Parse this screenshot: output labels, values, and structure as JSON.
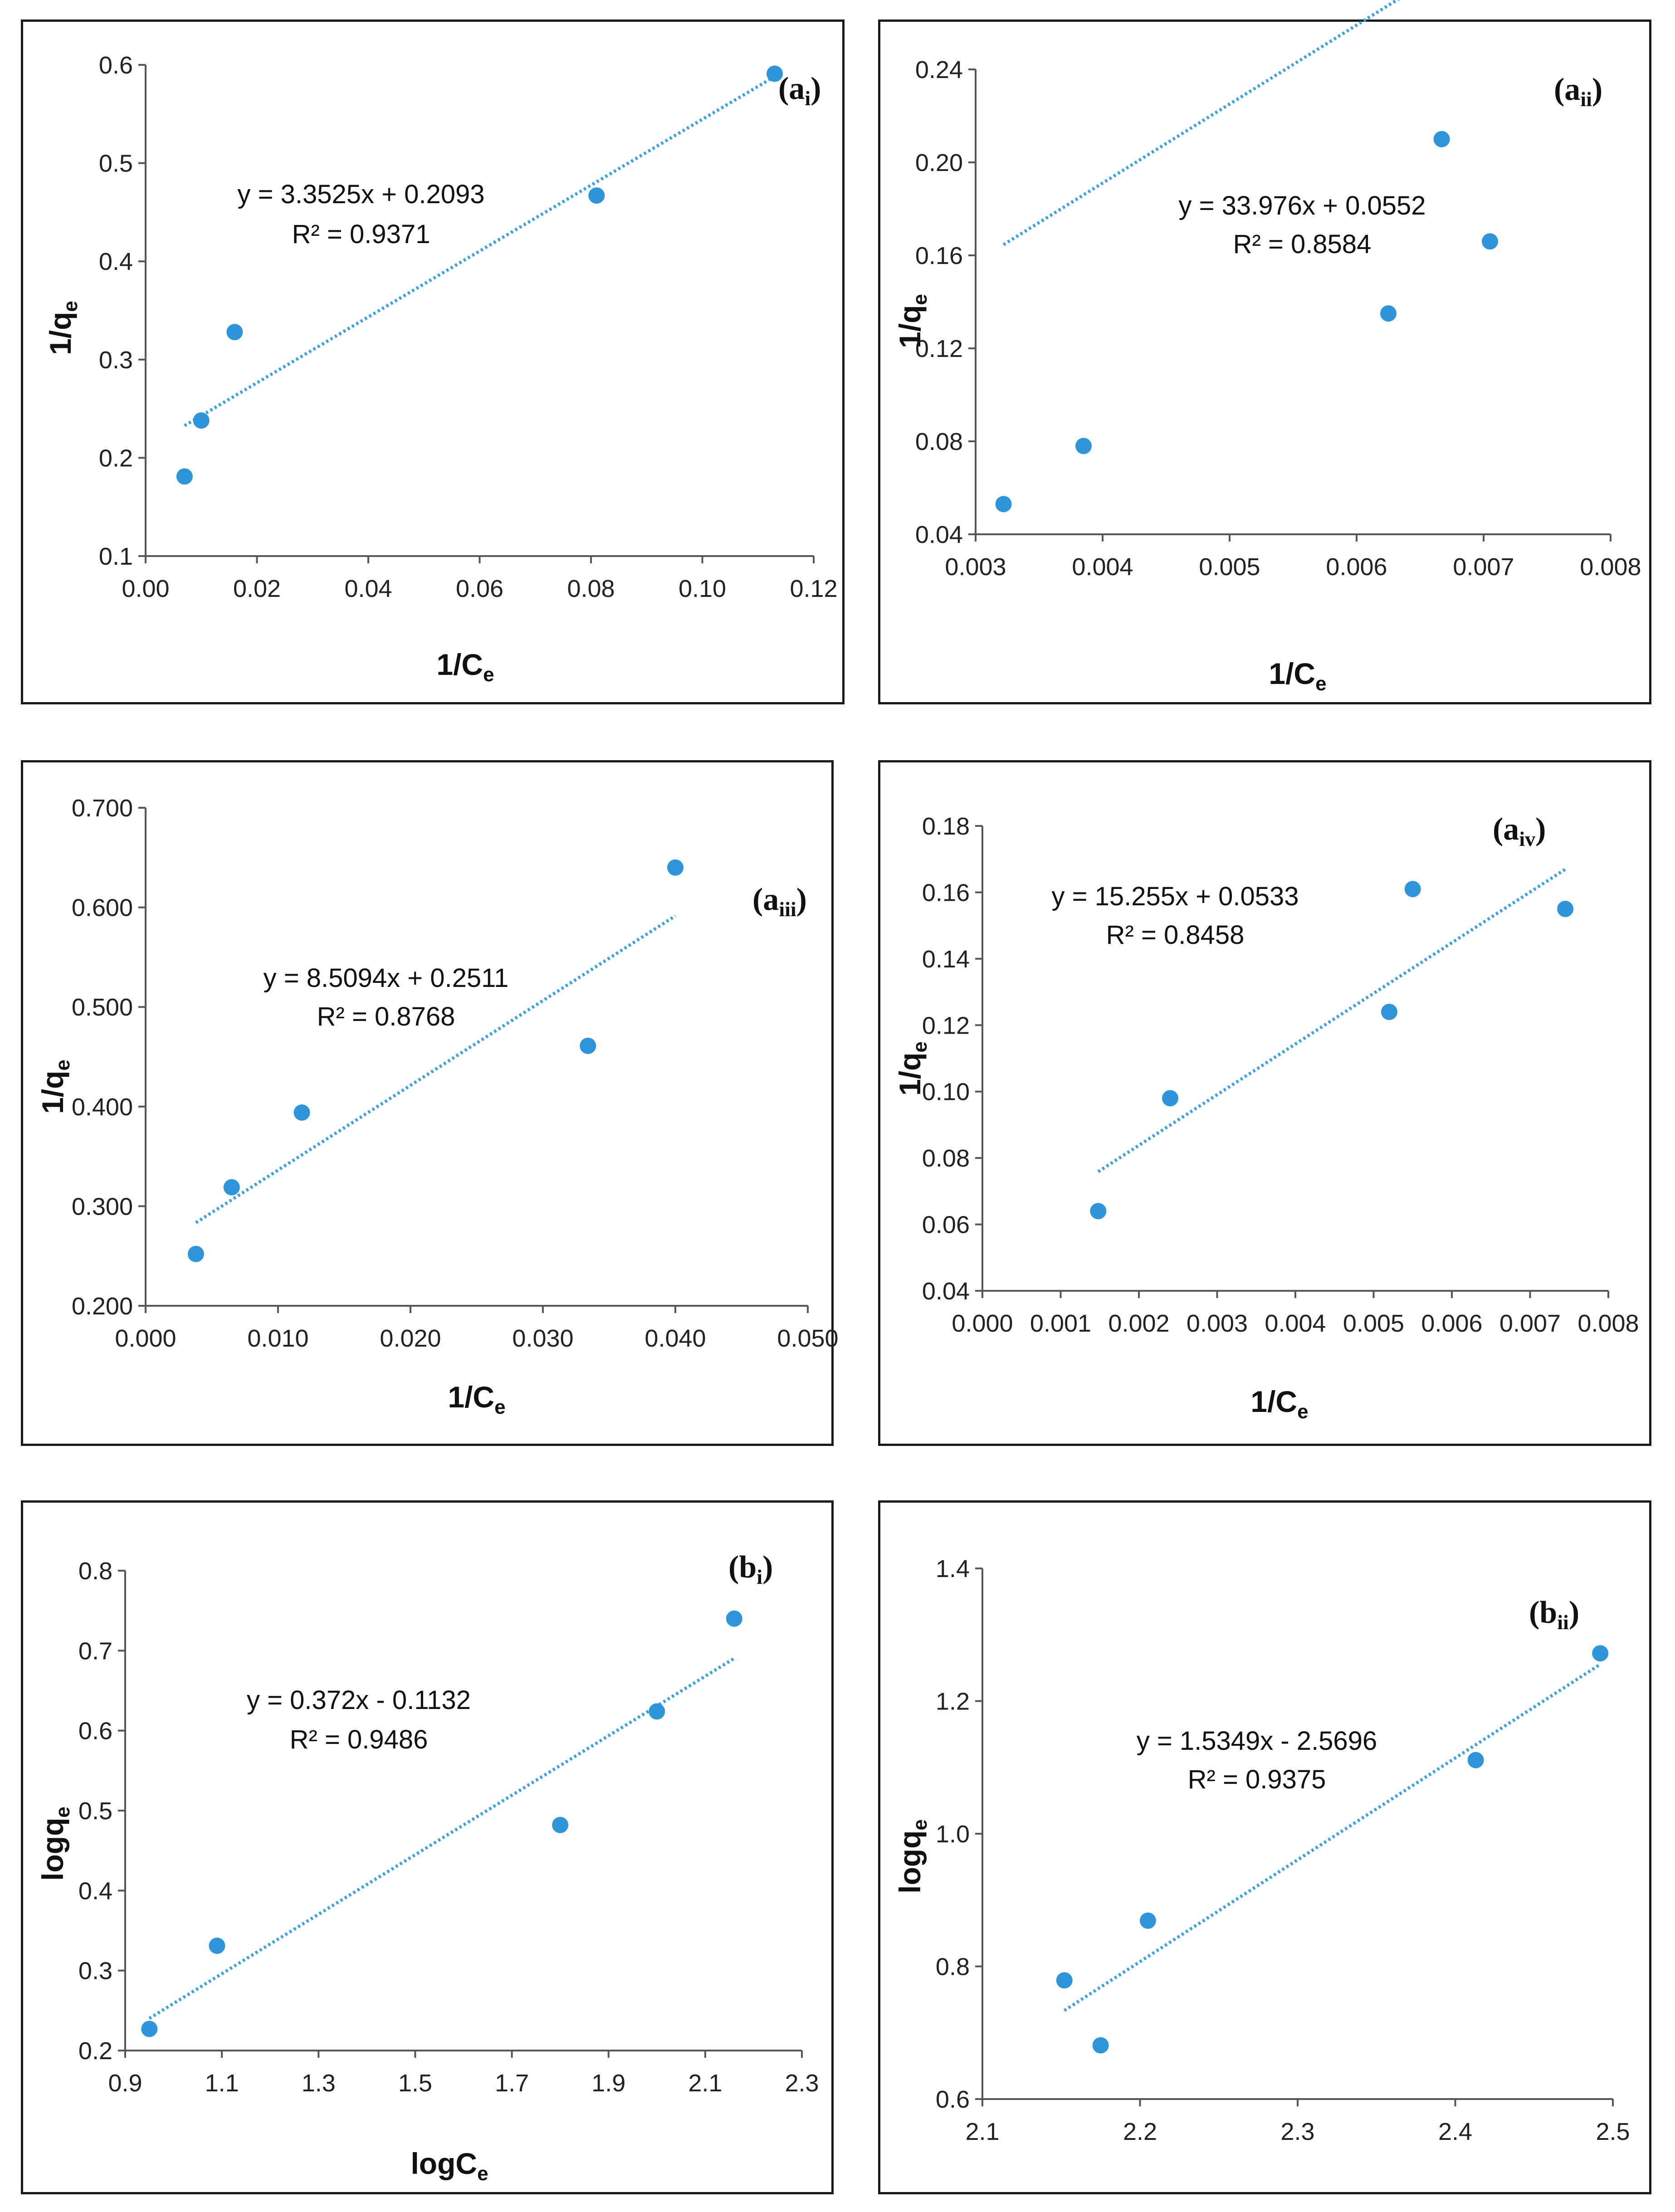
{
  "colors": {
    "point": "#2e96d8",
    "trend": "#3aa0de",
    "axis": "#555555",
    "frame": "#1a1a1a"
  },
  "chart_data": [
    {
      "id": "ai",
      "type": "scatter",
      "title": "",
      "panel_label": {
        "main": "(a",
        "sub": "i",
        "close": ")"
      },
      "xlabel": {
        "main": "1/C",
        "sub": "e"
      },
      "ylabel": {
        "main": "1/q",
        "sub": "e"
      },
      "xlim": [
        0,
        0.12
      ],
      "ylim": [
        0.1,
        0.6
      ],
      "xticks": [
        "0.00",
        "0.02",
        "0.04",
        "0.06",
        "0.08",
        "0.10",
        "0.12"
      ],
      "yticks": [
        "0.1",
        "0.2",
        "0.3",
        "0.4",
        "0.5",
        "0.6"
      ],
      "points": [
        [
          0.007,
          0.181
        ],
        [
          0.01,
          0.238
        ],
        [
          0.016,
          0.328
        ],
        [
          0.081,
          0.467
        ],
        [
          0.113,
          0.591
        ]
      ],
      "trendline": {
        "slope": 3.3525,
        "intercept": 0.2093,
        "x_range": [
          0.007,
          0.113
        ]
      },
      "equation": "y = 3.3525x + 0.2093",
      "r_squared": "R² = 0.9371"
    },
    {
      "id": "aii",
      "type": "scatter",
      "title": "",
      "panel_label": {
        "main": "(a",
        "sub": "ii",
        "close": ")"
      },
      "xlabel": {
        "main": "1/C",
        "sub": "e"
      },
      "ylabel": {
        "main": "1/q",
        "sub": "e"
      },
      "xlim": [
        0.003,
        0.008
      ],
      "ylim": [
        0.04,
        0.24
      ],
      "xticks": [
        "0.003",
        "0.004",
        "0.005",
        "0.006",
        "0.007",
        "0.008"
      ],
      "yticks": [
        "0.04",
        "0.08",
        "0.12",
        "0.16",
        "0.20",
        "0.24"
      ],
      "points": [
        [
          0.00322,
          0.053
        ],
        [
          0.00385,
          0.078
        ],
        [
          0.00625,
          0.135
        ],
        [
          0.00667,
          0.21
        ],
        [
          0.00705,
          0.166
        ]
      ],
      "trendline": {
        "slope": 33.976,
        "intercept": 0.0552,
        "x_range": [
          0.00322,
          0.00705
        ]
      },
      "equation": "y = 33.976x + 0.0552",
      "r_squared": "R² = 0.8584"
    },
    {
      "id": "aiii",
      "type": "scatter",
      "title": "",
      "panel_label": {
        "main": "(a",
        "sub": "iii",
        "close": ")"
      },
      "xlabel": {
        "main": "1/C",
        "sub": "e"
      },
      "ylabel": {
        "main": "1/q",
        "sub": "e"
      },
      "xlim": [
        0,
        0.05
      ],
      "ylim": [
        0.2,
        0.7
      ],
      "xticks": [
        "0.000",
        "0.010",
        "0.020",
        "0.030",
        "0.040",
        "0.050"
      ],
      "yticks": [
        "0.200",
        "0.300",
        "0.400",
        "0.500",
        "0.600",
        "0.700"
      ],
      "points": [
        [
          0.0038,
          0.252
        ],
        [
          0.0065,
          0.319
        ],
        [
          0.0118,
          0.394
        ],
        [
          0.0334,
          0.461
        ],
        [
          0.04,
          0.64
        ]
      ],
      "trendline": {
        "slope": 8.5094,
        "intercept": 0.2511,
        "x_range": [
          0.0038,
          0.04
        ]
      },
      "equation": "y = 8.5094x + 0.2511",
      "r_squared": "R² = 0.8768"
    },
    {
      "id": "aiv",
      "type": "scatter",
      "title": "",
      "panel_label": {
        "main": "(a",
        "sub": "iv",
        "close": ")"
      },
      "xlabel": {
        "main": "1/C",
        "sub": "e"
      },
      "ylabel": {
        "main": "1/q",
        "sub": "e"
      },
      "xlim": [
        0,
        0.008
      ],
      "ylim": [
        0.04,
        0.18
      ],
      "xticks": [
        "0.000",
        "0.001",
        "0.002",
        "0.003",
        "0.004",
        "0.005",
        "0.006",
        "0.007",
        "0.008"
      ],
      "yticks": [
        "0.04",
        "0.06",
        "0.08",
        "0.10",
        "0.12",
        "0.14",
        "0.16",
        "0.18"
      ],
      "points": [
        [
          0.00148,
          0.064
        ],
        [
          0.0024,
          0.098
        ],
        [
          0.0052,
          0.124
        ],
        [
          0.0055,
          0.161
        ],
        [
          0.00745,
          0.155
        ]
      ],
      "trendline": {
        "slope": 15.255,
        "intercept": 0.0533,
        "x_range": [
          0.00148,
          0.00745
        ]
      },
      "equation": "y = 15.255x + 0.0533",
      "r_squared": "R² = 0.8458"
    },
    {
      "id": "bi",
      "type": "scatter",
      "title": "",
      "panel_label": {
        "main": "(b",
        "sub": "i",
        "close": ")"
      },
      "xlabel": {
        "main": "logC",
        "sub": "e"
      },
      "ylabel": {
        "main": "logq",
        "sub": "e"
      },
      "xlim": [
        0.9,
        2.3
      ],
      "ylim": [
        0.2,
        0.8
      ],
      "xticks": [
        "0.9",
        "1.1",
        "1.3",
        "1.5",
        "1.7",
        "1.9",
        "2.1",
        "2.3"
      ],
      "yticks": [
        "0.2",
        "0.3",
        "0.4",
        "0.5",
        "0.6",
        "0.7",
        "0.8"
      ],
      "points": [
        [
          0.95,
          0.227
        ],
        [
          1.09,
          0.331
        ],
        [
          1.8,
          0.482
        ],
        [
          2.0,
          0.624
        ],
        [
          2.16,
          0.74
        ]
      ],
      "trendline": {
        "slope": 0.372,
        "intercept": -0.1132,
        "x_range": [
          0.95,
          2.16
        ]
      },
      "equation": "y = 0.372x - 0.1132",
      "r_squared": "R² = 0.9486"
    },
    {
      "id": "bii",
      "type": "scatter",
      "title": "",
      "panel_label": {
        "main": "(b",
        "sub": "ii",
        "close": ")"
      },
      "xlabel": {
        "main": "",
        "sub": ""
      },
      "ylabel": {
        "main": "logq",
        "sub": "e"
      },
      "xlim": [
        2.1,
        2.5
      ],
      "ylim": [
        0.6,
        1.4
      ],
      "xticks": [
        "2.1",
        "2.2",
        "2.3",
        "2.4",
        "2.5"
      ],
      "yticks": [
        "0.6",
        "0.8",
        "1.0",
        "1.2",
        "1.4"
      ],
      "points": [
        [
          2.152,
          0.779
        ],
        [
          2.175,
          0.681
        ],
        [
          2.205,
          0.869
        ],
        [
          2.413,
          1.111
        ],
        [
          2.492,
          1.272
        ]
      ],
      "trendline": {
        "slope": 1.5349,
        "intercept": -2.5696,
        "x_range": [
          2.152,
          2.492
        ]
      },
      "equation": "y = 1.5349x - 2.5696",
      "r_squared": "R² = 0.9375"
    }
  ]
}
